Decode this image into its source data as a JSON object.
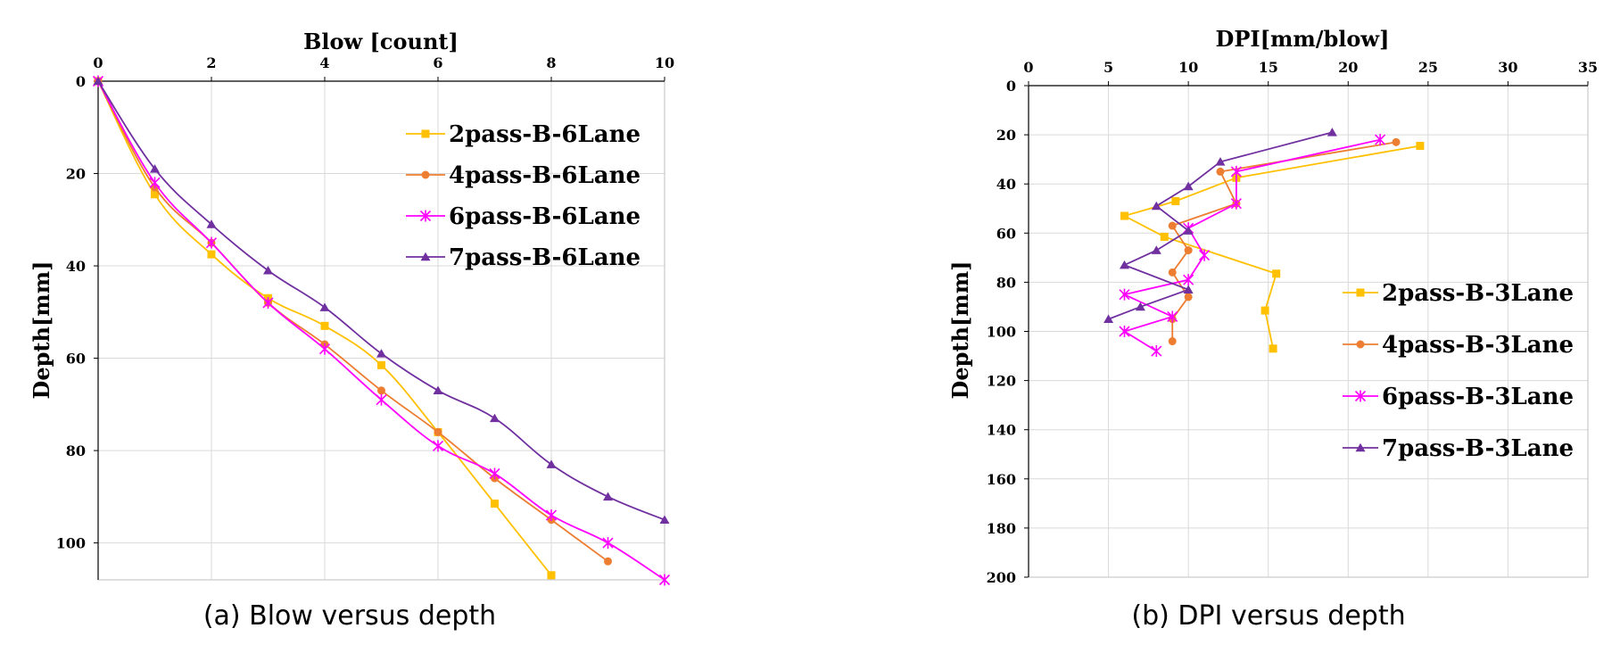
{
  "chart_data": [
    {
      "type": "line",
      "title": "",
      "xlabel": "Blow [count]",
      "ylabel": "Depth[mm]",
      "xlim": [
        0,
        10
      ],
      "ylim": [
        0,
        108
      ],
      "x_ticks": [
        "0",
        "2",
        "4",
        "6",
        "8",
        "10"
      ],
      "y_ticks": [
        "0",
        "20",
        "40",
        "60",
        "80",
        "100"
      ],
      "x_axis_position": "top",
      "y_inverted": true,
      "grid": true,
      "legend_position": "top-right",
      "caption": "(a) Blow versus depth",
      "series": [
        {
          "name": "2pass-B-6Lane",
          "color": "#FFC000",
          "marker": "square",
          "points": [
            [
              0,
              0
            ],
            [
              1,
              24.5
            ],
            [
              2,
              37.5
            ],
            [
              3,
              47
            ],
            [
              4,
              53
            ],
            [
              5,
              61.5
            ],
            [
              6,
              76
            ],
            [
              7,
              91.5
            ],
            [
              8,
              107
            ]
          ]
        },
        {
          "name": "4pass-B-6Lane",
          "color": "#ED7D31",
          "marker": "circle",
          "points": [
            [
              0,
              0
            ],
            [
              1,
              23
            ],
            [
              2,
              35
            ],
            [
              3,
              48
            ],
            [
              4,
              57
            ],
            [
              5,
              67
            ],
            [
              6,
              76
            ],
            [
              7,
              86
            ],
            [
              8,
              95
            ],
            [
              9,
              104
            ]
          ]
        },
        {
          "name": "6pass-B-6Lane",
          "color": "#FF00FF",
          "marker": "asterisk",
          "points": [
            [
              0,
              0
            ],
            [
              1,
              22
            ],
            [
              2,
              35
            ],
            [
              3,
              48
            ],
            [
              4,
              58
            ],
            [
              5,
              69
            ],
            [
              6,
              79
            ],
            [
              7,
              85
            ],
            [
              8,
              94
            ],
            [
              9,
              100
            ],
            [
              10,
              108
            ]
          ]
        },
        {
          "name": "7pass-B-6Lane",
          "color": "#7030A0",
          "marker": "triangle",
          "points": [
            [
              0,
              0
            ],
            [
              1,
              19
            ],
            [
              2,
              31
            ],
            [
              3,
              41
            ],
            [
              4,
              49
            ],
            [
              5,
              59
            ],
            [
              6,
              67
            ],
            [
              7,
              73
            ],
            [
              8,
              83
            ],
            [
              9,
              90
            ],
            [
              10,
              95
            ]
          ]
        }
      ]
    },
    {
      "type": "line",
      "title": "",
      "xlabel": "DPI[mm/blow]",
      "ylabel": "Depth[mm]",
      "xlim": [
        0,
        35
      ],
      "ylim": [
        0,
        200
      ],
      "x_ticks": [
        "0",
        "5",
        "10",
        "15",
        "20",
        "25",
        "30",
        "35"
      ],
      "y_ticks": [
        "0",
        "20",
        "40",
        "60",
        "80",
        "100",
        "120",
        "140",
        "160",
        "180",
        "200"
      ],
      "x_axis_position": "top",
      "y_inverted": true,
      "grid": true,
      "legend_position": "right",
      "caption": "(b) DPI versus depth",
      "series": [
        {
          "name": "2pass-B-3Lane",
          "color": "#FFC000",
          "marker": "square",
          "points": [
            [
              24.5,
              24.5
            ],
            [
              13,
              37.5
            ],
            [
              9.2,
              47
            ],
            [
              6,
              53
            ],
            [
              8.5,
              61.5
            ],
            [
              15.5,
              76.5
            ],
            [
              14.8,
              91.5
            ],
            [
              15.3,
              107
            ]
          ]
        },
        {
          "name": "4pass-B-3Lane",
          "color": "#ED7D31",
          "marker": "circle",
          "points": [
            [
              23,
              23
            ],
            [
              12,
              35
            ],
            [
              13,
              48
            ],
            [
              9,
              57
            ],
            [
              10,
              67
            ],
            [
              9,
              76
            ],
            [
              10,
              86
            ],
            [
              9,
              95
            ],
            [
              9,
              104
            ]
          ]
        },
        {
          "name": "6pass-B-3Lane",
          "color": "#FF00FF",
          "marker": "asterisk",
          "points": [
            [
              22,
              22
            ],
            [
              13,
              35
            ],
            [
              13,
              48
            ],
            [
              10,
              58
            ],
            [
              11,
              69
            ],
            [
              10,
              79
            ],
            [
              6,
              85
            ],
            [
              9,
              94
            ],
            [
              6,
              100
            ],
            [
              8,
              108
            ]
          ]
        },
        {
          "name": "7pass-B-3Lane",
          "color": "#7030A0",
          "marker": "triangle",
          "points": [
            [
              19,
              19
            ],
            [
              12,
              31
            ],
            [
              10,
              41
            ],
            [
              8,
              49
            ],
            [
              10,
              59
            ],
            [
              8,
              67
            ],
            [
              6,
              73
            ],
            [
              10,
              83
            ],
            [
              7,
              90
            ],
            [
              5,
              95
            ]
          ]
        }
      ]
    }
  ]
}
